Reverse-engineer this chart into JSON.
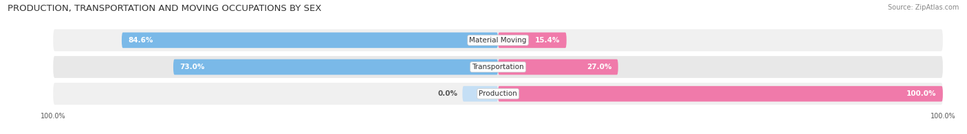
{
  "title": "PRODUCTION, TRANSPORTATION AND MOVING OCCUPATIONS BY SEX",
  "source": "Source: ZipAtlas.com",
  "categories": [
    "Material Moving",
    "Transportation",
    "Production"
  ],
  "male_pct": [
    84.6,
    73.0,
    0.0
  ],
  "female_pct": [
    15.4,
    27.0,
    100.0
  ],
  "male_color": "#7ab9e8",
  "female_color": "#f07aaa",
  "male_light_color": "#c5dff5",
  "female_light_color": "#f9c0d3",
  "row_bg_color_odd": "#f0f0f0",
  "row_bg_color_even": "#e8e8e8",
  "title_fontsize": 9.5,
  "source_fontsize": 7,
  "label_fontsize": 7.5,
  "pct_fontsize": 7.5,
  "tick_fontsize": 7,
  "figsize": [
    14.06,
    1.96
  ],
  "dpi": 100
}
